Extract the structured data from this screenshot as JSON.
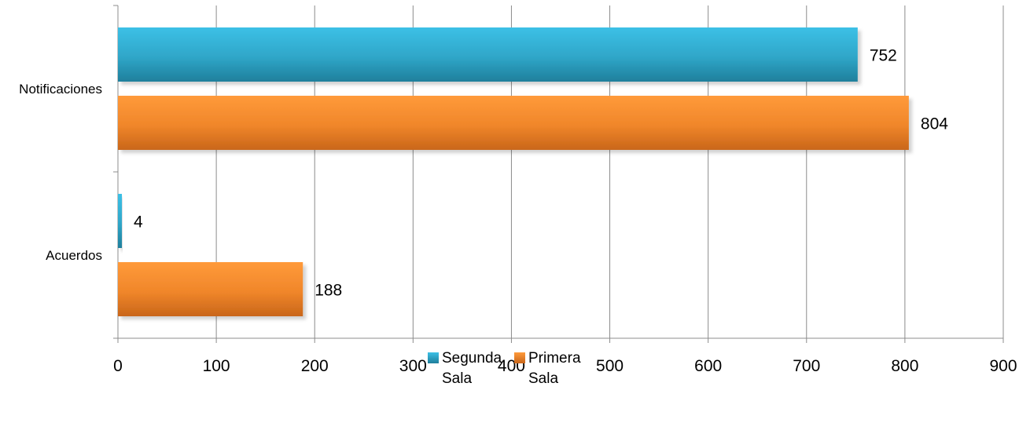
{
  "chart_data": {
    "type": "bar",
    "orientation": "horizontal",
    "categories": [
      "Notificaciones",
      "Acuerdos"
    ],
    "series": [
      {
        "name": "Segunda Sala",
        "values": [
          752,
          4
        ],
        "color": "#31b0d5"
      },
      {
        "name": "Primera Sala",
        "values": [
          804,
          188
        ],
        "color": "#f58a22"
      }
    ],
    "xlim": [
      0,
      900
    ],
    "xticks": [
      "0",
      "100",
      "200",
      "300",
      "400",
      "500",
      "600",
      "700",
      "800",
      "900"
    ],
    "data_labels": [
      [
        "752",
        "4"
      ],
      [
        "804",
        "188"
      ]
    ],
    "grid": true,
    "legend_position": "bottom"
  }
}
